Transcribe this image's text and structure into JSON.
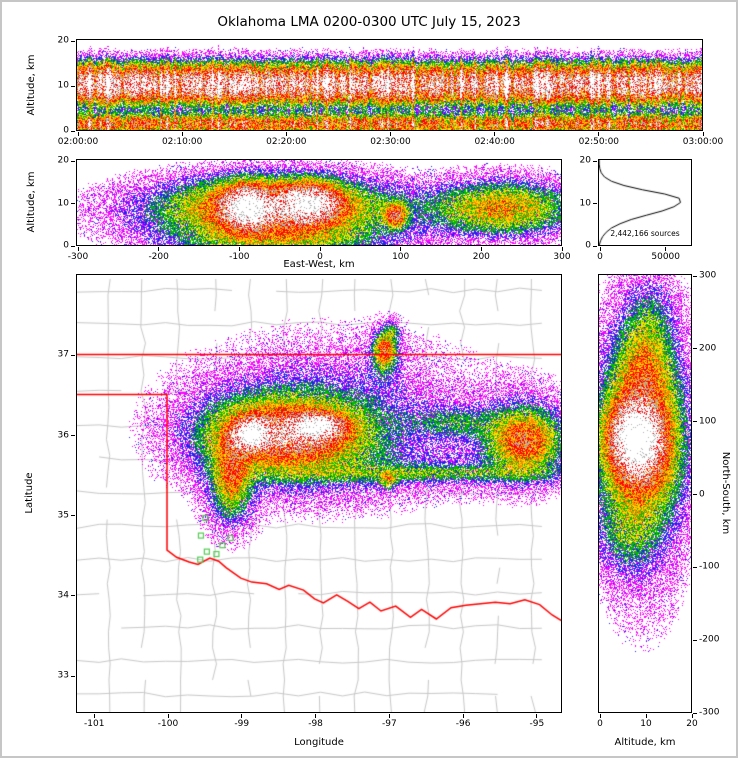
{
  "title": "Oklahoma LMA 0200-0300 UTC July 15, 2023",
  "colors": {
    "state_border": "#ff0000",
    "county_line": "#c8c8c8",
    "station": "#55cc55",
    "histogram_line": "#000000",
    "density_scale": [
      "#ff00ff",
      "#2222ee",
      "#00bb00",
      "#ffdd00",
      "#ff8800",
      "#ff0000",
      "#b0b0b0",
      "#ffffff"
    ]
  },
  "chart_data": [
    {
      "id": "time_height",
      "type": "heatmap",
      "ylabel": "Altitude, km",
      "xlim": [
        0,
        6
      ],
      "ylim": [
        0,
        20
      ],
      "xticks": [
        0,
        1,
        2,
        3,
        4,
        5,
        6
      ],
      "xtick_labels": [
        "02:00:00",
        "02:10:00",
        "02:20:00",
        "02:30:00",
        "02:40:00",
        "02:50:00",
        "03:00:00"
      ],
      "yticks": [
        0,
        10,
        20
      ],
      "profile": {
        "amp": 10,
        "peak_alt": 10.2,
        "peak_sd": 2.7,
        "low_alt": 1.3,
        "low_sd": 1.4,
        "low_amp": 0.55
      },
      "seed": 7
    },
    {
      "id": "ew_height",
      "type": "heatmap",
      "xlabel": "East-West, km",
      "ylabel": "Altitude, km",
      "xlim": [
        -300,
        300
      ],
      "ylim": [
        0,
        20
      ],
      "xticks": [
        -300,
        -200,
        -100,
        0,
        100,
        200,
        300
      ],
      "yticks": [
        0,
        10,
        20
      ],
      "seed": 11,
      "blobs": [
        [
          -90,
          9,
          26,
          4.2,
          11
        ],
        [
          -12,
          10,
          32,
          3.8,
          9.5
        ],
        [
          -55,
          8.5,
          95,
          5.8,
          4.8
        ],
        [
          -60,
          8,
          150,
          6.8,
          1.9
        ],
        [
          -30,
          8,
          180,
          7.5,
          0.8
        ],
        [
          95,
          7,
          12,
          2.5,
          5.5
        ],
        [
          225,
          8.5,
          70,
          5,
          2.8
        ],
        [
          240,
          9,
          85,
          6.5,
          1.1
        ],
        [
          -55,
          1,
          110,
          3,
          1.8
        ]
      ]
    },
    {
      "id": "histogram",
      "type": "line",
      "annotation": "2,442,166 sources",
      "xlim": [
        0,
        70000
      ],
      "ylim": [
        0,
        20
      ],
      "xticks": [
        0,
        50000
      ],
      "xtick_labels": [
        "0",
        "50000"
      ],
      "yticks": [
        0,
        10,
        20
      ],
      "points": [
        [
          0,
          200
        ],
        [
          1,
          1200
        ],
        [
          2,
          2800
        ],
        [
          3,
          5500
        ],
        [
          4,
          9500
        ],
        [
          5,
          16000
        ],
        [
          6,
          24500
        ],
        [
          7,
          36000
        ],
        [
          8,
          48000
        ],
        [
          9,
          57000
        ],
        [
          10,
          62000
        ],
        [
          11,
          61000
        ],
        [
          12,
          50000
        ],
        [
          13,
          33000
        ],
        [
          14,
          19000
        ],
        [
          15,
          9500
        ],
        [
          16,
          4200
        ],
        [
          17,
          1700
        ],
        [
          18,
          600
        ],
        [
          19,
          180
        ],
        [
          20,
          60
        ]
      ]
    },
    {
      "id": "plan_view",
      "type": "heatmap",
      "xlabel": "Longitude",
      "ylabel": "Latitude",
      "xlim": [
        -101.22,
        -94.66
      ],
      "ylim": [
        32.54,
        37.99
      ],
      "xticks": [
        -101,
        -100,
        -99,
        -98,
        -97,
        -96,
        -95
      ],
      "yticks": [
        33,
        34,
        35,
        36,
        37
      ],
      "seed": 13,
      "county_grid": {
        "dlon": 0.48,
        "dlat": 0.42,
        "seed": 9
      },
      "blobs": [
        [
          -98.87,
          36.0,
          0.22,
          0.16,
          11
        ],
        [
          -97.95,
          36.1,
          0.3,
          0.13,
          10
        ],
        [
          -98.4,
          36.0,
          0.8,
          0.33,
          5.5
        ],
        [
          -98.35,
          36.0,
          1.05,
          0.5,
          2.3
        ],
        [
          -97.9,
          36.1,
          1.5,
          0.75,
          0.75
        ],
        [
          -99.12,
          35.5,
          0.2,
          0.38,
          3.4
        ],
        [
          -99.15,
          35.35,
          0.33,
          0.55,
          1.1
        ],
        [
          -96.5,
          35.52,
          1.75,
          0.09,
          1.5
        ],
        [
          -96.5,
          35.55,
          1.8,
          0.25,
          0.5
        ],
        [
          -95.16,
          35.92,
          0.38,
          0.3,
          4.2
        ],
        [
          -95.15,
          35.95,
          0.6,
          0.5,
          1.5
        ],
        [
          -97.05,
          37.05,
          0.12,
          0.18,
          4.5
        ],
        [
          -97.05,
          36.95,
          0.22,
          0.32,
          0.9
        ],
        [
          -96.95,
          37.28,
          0.1,
          0.12,
          1.6
        ],
        [
          -97.0,
          35.43,
          0.1,
          0.09,
          2.6
        ],
        [
          -96.1,
          36.15,
          0.55,
          0.18,
          1.4
        ],
        [
          -97.6,
          36.3,
          2.3,
          1.1,
          0.3
        ]
      ],
      "borders": [
        [
          [
            -101.25,
            37.0
          ],
          [
            -94.6,
            37.0
          ]
        ],
        [
          [
            -101.25,
            36.5
          ],
          [
            -100.0,
            36.5
          ],
          [
            -100.0,
            34.56
          ],
          [
            -99.87,
            34.47
          ],
          [
            -99.7,
            34.41
          ],
          [
            -99.58,
            34.38
          ],
          [
            -99.42,
            34.46
          ],
          [
            -99.3,
            34.42
          ],
          [
            -99.2,
            34.34
          ],
          [
            -99.0,
            34.21
          ],
          [
            -98.85,
            34.16
          ],
          [
            -98.65,
            34.14
          ],
          [
            -98.48,
            34.07
          ],
          [
            -98.35,
            34.12
          ],
          [
            -98.15,
            34.06
          ],
          [
            -98.0,
            33.95
          ],
          [
            -97.88,
            33.9
          ],
          [
            -97.7,
            34.0
          ],
          [
            -97.55,
            33.92
          ],
          [
            -97.4,
            33.83
          ],
          [
            -97.25,
            33.91
          ],
          [
            -97.1,
            33.8
          ],
          [
            -96.9,
            33.86
          ],
          [
            -96.7,
            33.72
          ],
          [
            -96.55,
            33.82
          ],
          [
            -96.35,
            33.7
          ],
          [
            -96.15,
            33.84
          ],
          [
            -95.95,
            33.87
          ],
          [
            -95.75,
            33.89
          ],
          [
            -95.55,
            33.91
          ],
          [
            -95.35,
            33.89
          ],
          [
            -95.15,
            33.94
          ],
          [
            -94.95,
            33.88
          ],
          [
            -94.78,
            33.75
          ],
          [
            -94.6,
            33.65
          ]
        ]
      ],
      "stations": [
        [
          -99.48,
          34.96
        ],
        [
          -99.54,
          34.74
        ],
        [
          -99.14,
          34.71
        ],
        [
          -99.46,
          34.54
        ],
        [
          -99.33,
          34.51
        ],
        [
          -99.55,
          34.44
        ],
        [
          -99.25,
          34.62
        ]
      ]
    },
    {
      "id": "ns_height",
      "type": "heatmap",
      "xlabel": "Altitude, km",
      "ylabel": "North-South, km",
      "xlim": [
        0,
        20
      ],
      "ylim": [
        -300,
        300
      ],
      "xticks": [
        0,
        10,
        20
      ],
      "yticks": [
        -300,
        -200,
        -100,
        0,
        100,
        200,
        300
      ],
      "seed": 5,
      "blobs": [
        [
          8,
          75,
          4.5,
          40,
          11
        ],
        [
          9,
          70,
          6.5,
          70,
          5.5
        ],
        [
          9,
          80,
          8,
          110,
          2.2
        ],
        [
          9,
          60,
          10,
          170,
          0.8
        ],
        [
          10,
          175,
          5,
          50,
          2.4
        ],
        [
          11,
          240,
          5,
          45,
          1.0
        ],
        [
          6,
          -55,
          6,
          45,
          1.1
        ],
        [
          10,
          80,
          9,
          230,
          0.4
        ]
      ]
    }
  ]
}
